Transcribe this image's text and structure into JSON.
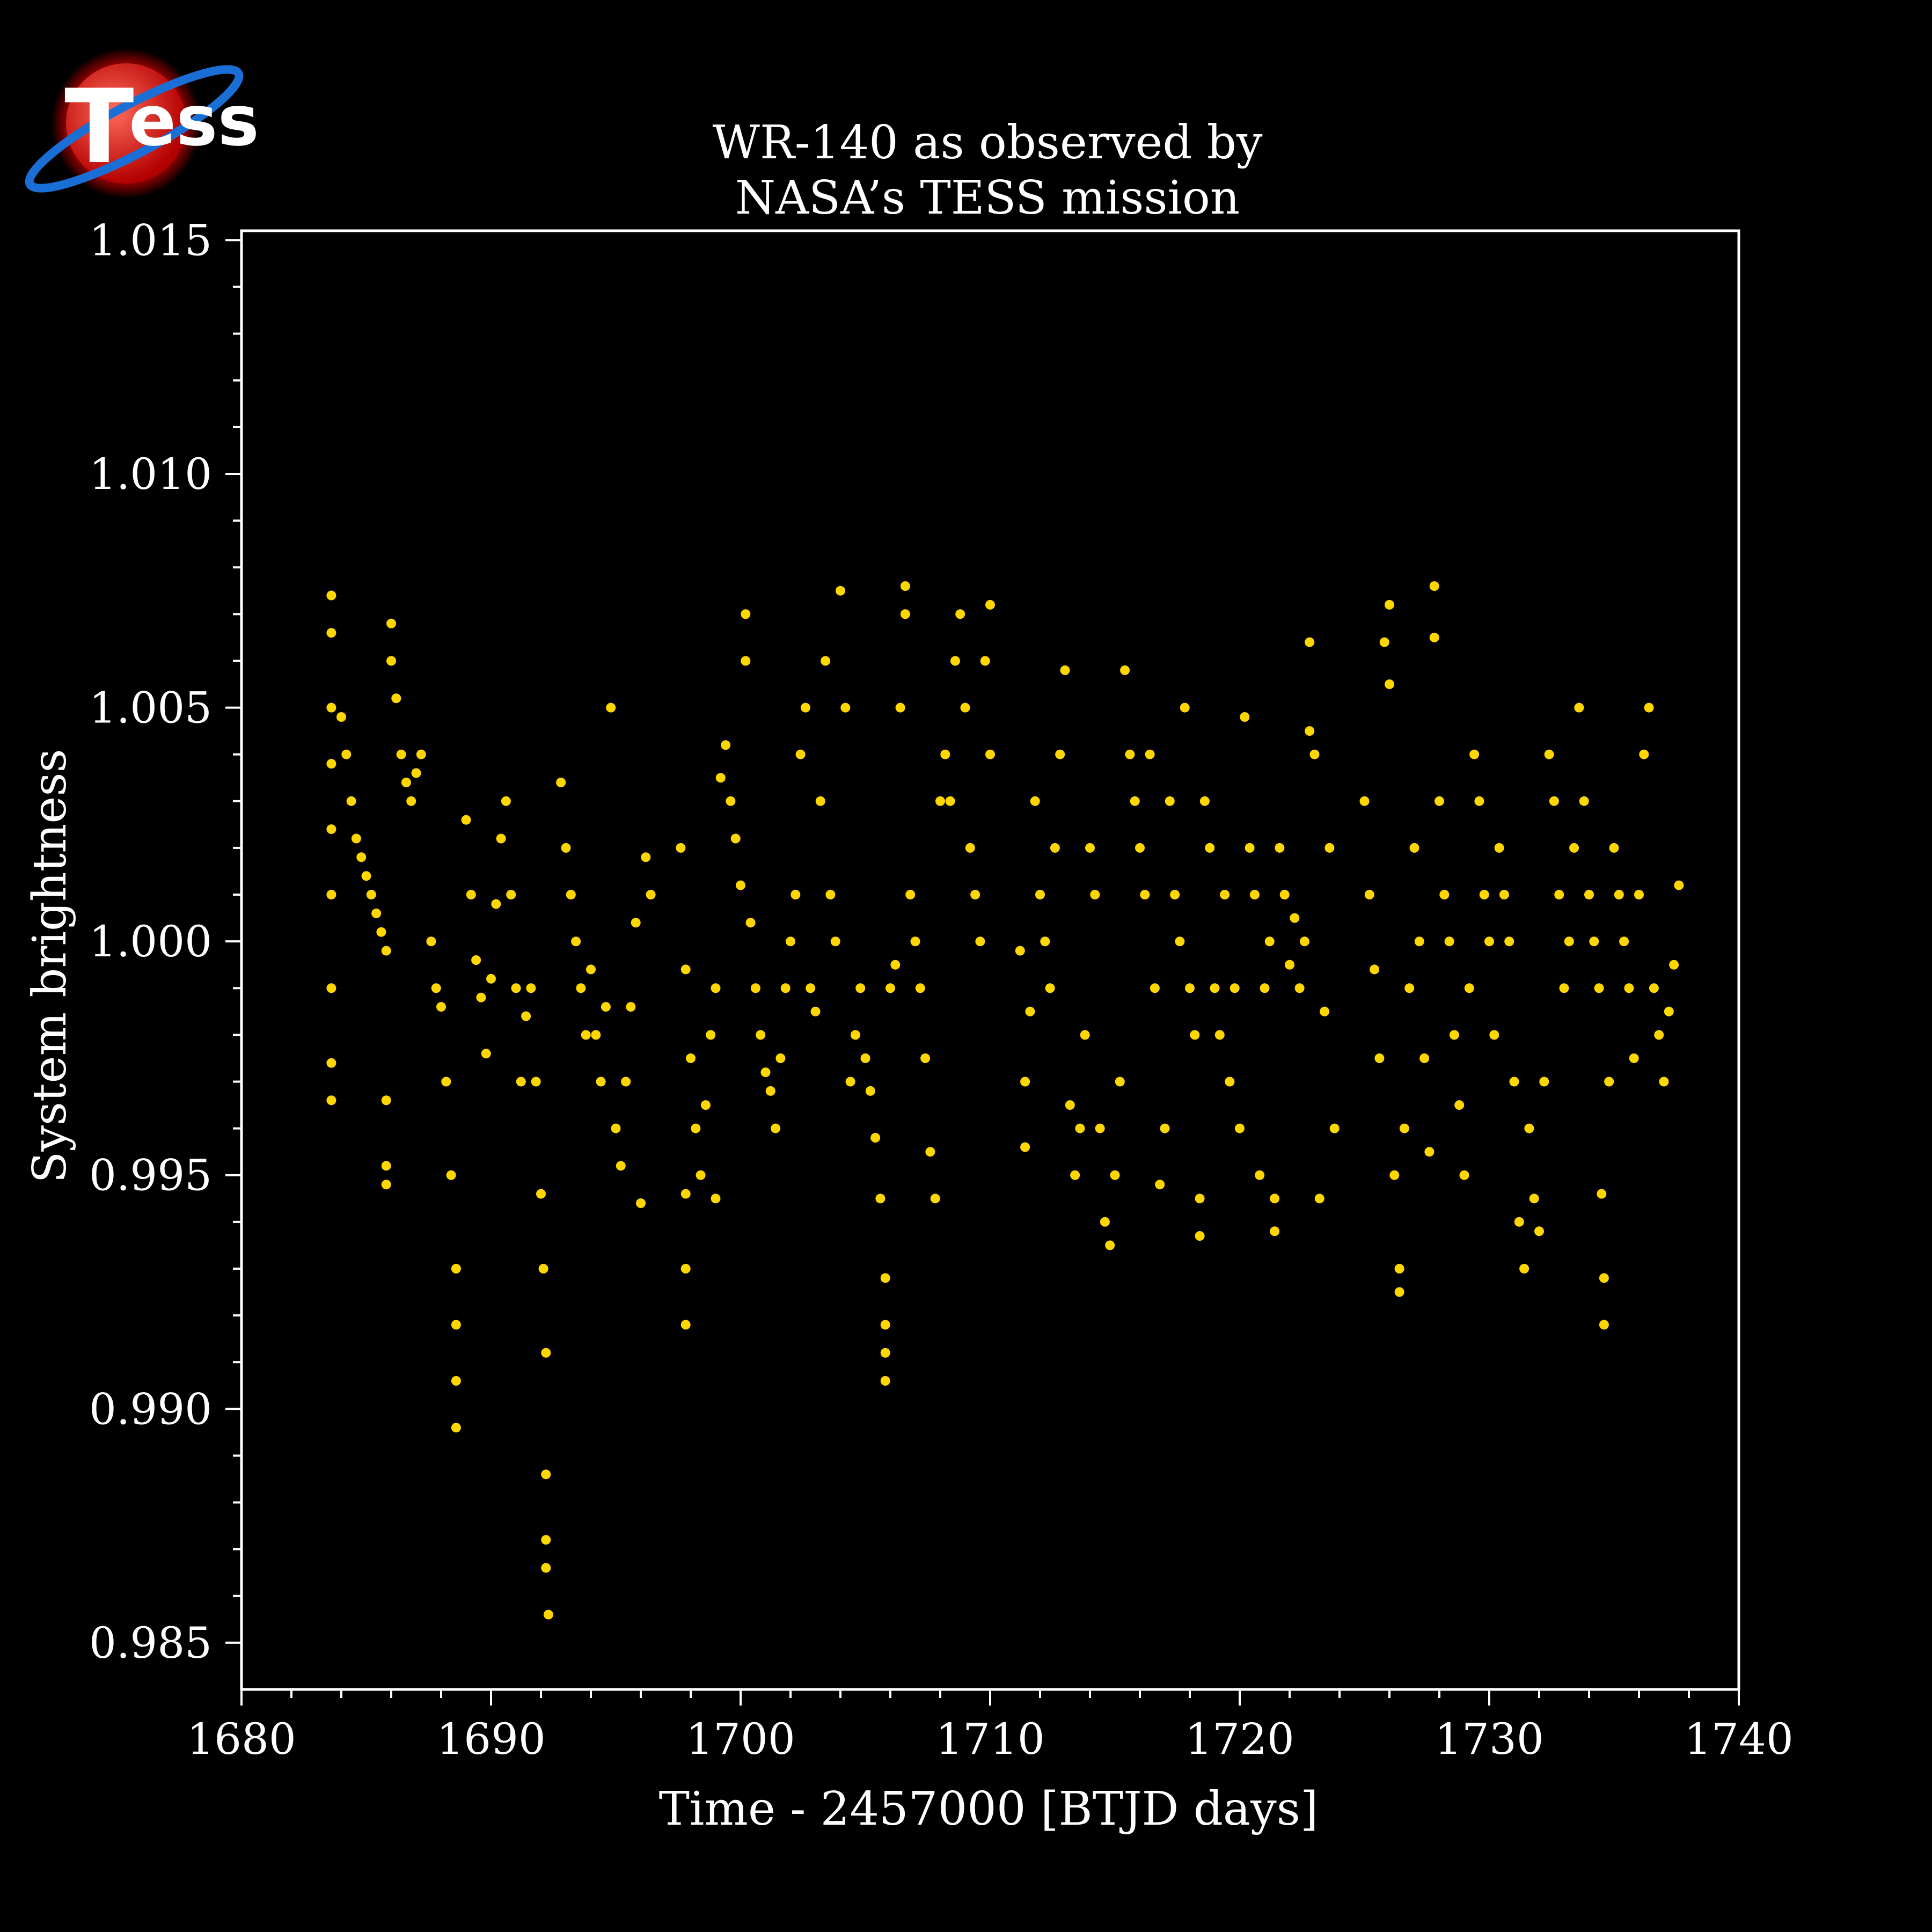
{
  "logo": {
    "text": "Tess"
  },
  "colors": {
    "background": "#000000",
    "axis": "#ffffff",
    "points": "#FFD700",
    "text": "#ffffff"
  },
  "chart_data": {
    "type": "scatter",
    "title": "WR-140 as observed by",
    "subtitle": "NASA’s TESS mission",
    "xlabel": "Time - 2457000 [BTJD days]",
    "ylabel": "System brightness",
    "xlim": [
      1680,
      1740
    ],
    "ylim": [
      0.984,
      1.0152
    ],
    "xticks": [
      1680,
      1690,
      1700,
      1710,
      1720,
      1730,
      1740
    ],
    "xtick_labels": [
      "1680",
      "1690",
      "1700",
      "1710",
      "1720",
      "1730",
      "1740"
    ],
    "yticks": [
      0.985,
      0.99,
      0.995,
      1.0,
      1.005,
      1.01,
      1.015
    ],
    "ytick_labels": [
      "0.985",
      "0.990",
      "0.995",
      "1.000",
      "1.005",
      "1.010",
      "1.015"
    ],
    "grid": false,
    "series": [
      {
        "color": "#FFD700",
        "points": [
          [
            1683.6,
            1.0074
          ],
          [
            1683.6,
            1.0066
          ],
          [
            1683.6,
            1.005
          ],
          [
            1683.6,
            1.0038
          ],
          [
            1683.6,
            1.0024
          ],
          [
            1683.6,
            1.001
          ],
          [
            1683.6,
            0.999
          ],
          [
            1683.6,
            0.9974
          ],
          [
            1683.6,
            0.9966
          ],
          [
            1684.0,
            1.0048
          ],
          [
            1684.2,
            1.004
          ],
          [
            1684.4,
            1.003
          ],
          [
            1684.6,
            1.0022
          ],
          [
            1684.8,
            1.0018
          ],
          [
            1685.0,
            1.0014
          ],
          [
            1685.2,
            1.001
          ],
          [
            1685.4,
            1.0006
          ],
          [
            1685.6,
            1.0002
          ],
          [
            1685.8,
            0.9998
          ],
          [
            1685.8,
            0.9966
          ],
          [
            1685.8,
            0.9952
          ],
          [
            1685.8,
            0.9948
          ],
          [
            1686.0,
            1.0068
          ],
          [
            1686.0,
            1.006
          ],
          [
            1686.2,
            1.0052
          ],
          [
            1686.4,
            1.004
          ],
          [
            1686.6,
            1.0034
          ],
          [
            1686.8,
            1.003
          ],
          [
            1687.0,
            1.0036
          ],
          [
            1687.2,
            1.004
          ],
          [
            1687.6,
            1.0
          ],
          [
            1687.8,
            0.999
          ],
          [
            1688.0,
            0.9986
          ],
          [
            1688.2,
            0.997
          ],
          [
            1688.4,
            0.995
          ],
          [
            1688.6,
            0.993
          ],
          [
            1688.6,
            0.9918
          ],
          [
            1688.6,
            0.9906
          ],
          [
            1688.6,
            0.9896
          ],
          [
            1689.0,
            1.0026
          ],
          [
            1689.2,
            1.001
          ],
          [
            1689.4,
            0.9996
          ],
          [
            1689.6,
            0.9988
          ],
          [
            1689.8,
            0.9976
          ],
          [
            1690.0,
            0.9992
          ],
          [
            1690.2,
            1.0008
          ],
          [
            1690.4,
            1.0022
          ],
          [
            1690.6,
            1.003
          ],
          [
            1690.8,
            1.001
          ],
          [
            1691.0,
            0.999
          ],
          [
            1691.2,
            0.997
          ],
          [
            1691.4,
            0.9984
          ],
          [
            1691.6,
            0.999
          ],
          [
            1691.8,
            0.997
          ],
          [
            1692.0,
            0.9946
          ],
          [
            1692.1,
            0.993
          ],
          [
            1692.2,
            0.9912
          ],
          [
            1692.2,
            0.9886
          ],
          [
            1692.2,
            0.9872
          ],
          [
            1692.2,
            0.9866
          ],
          [
            1692.3,
            0.9856
          ],
          [
            1692.8,
            1.0034
          ],
          [
            1693.0,
            1.002
          ],
          [
            1693.2,
            1.001
          ],
          [
            1693.4,
            1.0
          ],
          [
            1693.6,
            0.999
          ],
          [
            1693.8,
            0.998
          ],
          [
            1694.0,
            0.9994
          ],
          [
            1694.2,
            0.998
          ],
          [
            1694.4,
            0.997
          ],
          [
            1694.6,
            0.9986
          ],
          [
            1694.8,
            1.005
          ],
          [
            1695.0,
            0.996
          ],
          [
            1695.2,
            0.9952
          ],
          [
            1695.4,
            0.997
          ],
          [
            1695.6,
            0.9986
          ],
          [
            1695.8,
            1.0004
          ],
          [
            1696.0,
            0.9944
          ],
          [
            1696.2,
            1.0018
          ],
          [
            1696.4,
            1.001
          ],
          [
            1697.6,
            1.002
          ],
          [
            1697.8,
            0.9994
          ],
          [
            1697.8,
            0.9946
          ],
          [
            1697.8,
            0.993
          ],
          [
            1697.8,
            0.9918
          ],
          [
            1698.0,
            0.9975
          ],
          [
            1698.2,
            0.996
          ],
          [
            1698.4,
            0.995
          ],
          [
            1698.6,
            0.9965
          ],
          [
            1698.8,
            0.998
          ],
          [
            1699.0,
            0.999
          ],
          [
            1699.0,
            0.9945
          ],
          [
            1699.2,
            1.0035
          ],
          [
            1699.4,
            1.0042
          ],
          [
            1699.6,
            1.003
          ],
          [
            1699.8,
            1.0022
          ],
          [
            1700.0,
            1.0012
          ],
          [
            1700.2,
            1.006
          ],
          [
            1700.2,
            1.007
          ],
          [
            1700.4,
            1.0004
          ],
          [
            1700.6,
            0.999
          ],
          [
            1700.8,
            0.998
          ],
          [
            1701.0,
            0.9972
          ],
          [
            1701.2,
            0.9968
          ],
          [
            1701.4,
            0.996
          ],
          [
            1701.6,
            0.9975
          ],
          [
            1701.8,
            0.999
          ],
          [
            1702.0,
            1.0
          ],
          [
            1702.2,
            1.001
          ],
          [
            1702.4,
            1.004
          ],
          [
            1702.6,
            1.005
          ],
          [
            1702.8,
            0.999
          ],
          [
            1703.0,
            0.9985
          ],
          [
            1703.2,
            1.003
          ],
          [
            1703.4,
            1.006
          ],
          [
            1703.6,
            1.001
          ],
          [
            1703.8,
            1.0
          ],
          [
            1704.0,
            1.0075
          ],
          [
            1704.2,
            1.005
          ],
          [
            1704.4,
            0.997
          ],
          [
            1704.6,
            0.998
          ],
          [
            1704.8,
            0.999
          ],
          [
            1705.0,
            0.9975
          ],
          [
            1705.2,
            0.9968
          ],
          [
            1705.4,
            0.9958
          ],
          [
            1705.6,
            0.9945
          ],
          [
            1705.8,
            0.9928
          ],
          [
            1705.8,
            0.9918
          ],
          [
            1705.8,
            0.9912
          ],
          [
            1705.8,
            0.9906
          ],
          [
            1706.0,
            0.999
          ],
          [
            1706.2,
            0.9995
          ],
          [
            1706.4,
            1.005
          ],
          [
            1706.6,
            1.0076
          ],
          [
            1706.6,
            1.007
          ],
          [
            1706.8,
            1.001
          ],
          [
            1707.0,
            1.0
          ],
          [
            1707.2,
            0.999
          ],
          [
            1707.4,
            0.9975
          ],
          [
            1707.6,
            0.9955
          ],
          [
            1707.8,
            0.9945
          ],
          [
            1708.0,
            1.003
          ],
          [
            1708.2,
            1.004
          ],
          [
            1708.4,
            1.003
          ],
          [
            1708.6,
            1.006
          ],
          [
            1708.8,
            1.007
          ],
          [
            1709.0,
            1.005
          ],
          [
            1709.2,
            1.002
          ],
          [
            1709.4,
            1.001
          ],
          [
            1709.6,
            1.0
          ],
          [
            1709.8,
            1.006
          ],
          [
            1710.0,
            1.0072
          ],
          [
            1710.0,
            1.004
          ],
          [
            1711.2,
            0.9998
          ],
          [
            1711.4,
            0.997
          ],
          [
            1711.4,
            0.9956
          ],
          [
            1711.6,
            0.9985
          ],
          [
            1711.8,
            1.003
          ],
          [
            1712.0,
            1.001
          ],
          [
            1712.2,
            1.0
          ],
          [
            1712.4,
            0.999
          ],
          [
            1712.6,
            1.002
          ],
          [
            1712.8,
            1.004
          ],
          [
            1713.0,
            1.0058
          ],
          [
            1713.2,
            0.9965
          ],
          [
            1713.4,
            0.995
          ],
          [
            1713.6,
            0.996
          ],
          [
            1713.8,
            0.998
          ],
          [
            1714.0,
            1.002
          ],
          [
            1714.2,
            1.001
          ],
          [
            1714.4,
            0.996
          ],
          [
            1714.6,
            0.994
          ],
          [
            1714.8,
            0.9935
          ],
          [
            1715.0,
            0.995
          ],
          [
            1715.2,
            0.997
          ],
          [
            1715.4,
            1.0058
          ],
          [
            1715.6,
            1.004
          ],
          [
            1715.8,
            1.003
          ],
          [
            1716.0,
            1.002
          ],
          [
            1716.2,
            1.001
          ],
          [
            1716.4,
            1.004
          ],
          [
            1716.6,
            0.999
          ],
          [
            1716.8,
            0.9948
          ],
          [
            1717.0,
            0.996
          ],
          [
            1717.2,
            1.003
          ],
          [
            1717.4,
            1.001
          ],
          [
            1717.6,
            1.0
          ],
          [
            1717.8,
            1.005
          ],
          [
            1718.0,
            0.999
          ],
          [
            1718.2,
            0.998
          ],
          [
            1718.4,
            0.9945
          ],
          [
            1718.4,
            0.9937
          ],
          [
            1718.6,
            1.003
          ],
          [
            1718.8,
            1.002
          ],
          [
            1719.0,
            0.999
          ],
          [
            1719.2,
            0.998
          ],
          [
            1719.4,
            1.001
          ],
          [
            1719.6,
            0.997
          ],
          [
            1719.8,
            0.999
          ],
          [
            1720.0,
            0.996
          ],
          [
            1720.2,
            1.0048
          ],
          [
            1720.4,
            1.002
          ],
          [
            1720.6,
            1.001
          ],
          [
            1720.8,
            0.995
          ],
          [
            1721.0,
            0.999
          ],
          [
            1721.2,
            1.0
          ],
          [
            1721.4,
            0.9945
          ],
          [
            1721.4,
            0.9938
          ],
          [
            1721.6,
            1.002
          ],
          [
            1721.8,
            1.001
          ],
          [
            1722.0,
            0.9995
          ],
          [
            1722.2,
            1.0005
          ],
          [
            1722.4,
            0.999
          ],
          [
            1722.6,
            1.0
          ],
          [
            1722.8,
            1.0064
          ],
          [
            1722.8,
            1.0045
          ],
          [
            1723.0,
            1.004
          ],
          [
            1723.2,
            0.9945
          ],
          [
            1723.4,
            0.9985
          ],
          [
            1723.6,
            1.002
          ],
          [
            1723.8,
            0.996
          ],
          [
            1725.0,
            1.003
          ],
          [
            1725.2,
            1.001
          ],
          [
            1725.4,
            0.9994
          ],
          [
            1725.6,
            0.9975
          ],
          [
            1725.8,
            1.0064
          ],
          [
            1726.0,
            1.0072
          ],
          [
            1726.0,
            1.0055
          ],
          [
            1726.2,
            0.995
          ],
          [
            1726.4,
            0.993
          ],
          [
            1726.4,
            0.9925
          ],
          [
            1726.6,
            0.996
          ],
          [
            1726.8,
            0.999
          ],
          [
            1727.0,
            1.002
          ],
          [
            1727.2,
            1.0
          ],
          [
            1727.4,
            0.9975
          ],
          [
            1727.6,
            0.9955
          ],
          [
            1727.8,
            1.0076
          ],
          [
            1727.8,
            1.0065
          ],
          [
            1728.0,
            1.003
          ],
          [
            1728.2,
            1.001
          ],
          [
            1728.4,
            1.0
          ],
          [
            1728.6,
            0.998
          ],
          [
            1728.8,
            0.9965
          ],
          [
            1729.0,
            0.995
          ],
          [
            1729.2,
            0.999
          ],
          [
            1729.4,
            1.004
          ],
          [
            1729.6,
            1.003
          ],
          [
            1729.8,
            1.001
          ],
          [
            1730.0,
            1.0
          ],
          [
            1730.2,
            0.998
          ],
          [
            1730.4,
            1.002
          ],
          [
            1730.6,
            1.001
          ],
          [
            1730.8,
            1.0
          ],
          [
            1731.0,
            0.997
          ],
          [
            1731.2,
            0.994
          ],
          [
            1731.4,
            0.993
          ],
          [
            1731.6,
            0.996
          ],
          [
            1731.8,
            0.9945
          ],
          [
            1732.0,
            0.9938
          ],
          [
            1732.2,
            0.997
          ],
          [
            1732.4,
            1.004
          ],
          [
            1732.6,
            1.003
          ],
          [
            1732.8,
            1.001
          ],
          [
            1733.0,
            0.999
          ],
          [
            1733.2,
            1.0
          ],
          [
            1733.4,
            1.002
          ],
          [
            1733.6,
            1.005
          ],
          [
            1733.8,
            1.003
          ],
          [
            1734.0,
            1.001
          ],
          [
            1734.2,
            1.0
          ],
          [
            1734.4,
            0.999
          ],
          [
            1734.5,
            0.9946
          ],
          [
            1734.6,
            0.9928
          ],
          [
            1734.6,
            0.9918
          ],
          [
            1734.8,
            0.997
          ],
          [
            1735.0,
            1.002
          ],
          [
            1735.2,
            1.001
          ],
          [
            1735.4,
            1.0
          ],
          [
            1735.6,
            0.999
          ],
          [
            1735.8,
            0.9975
          ],
          [
            1736.0,
            1.001
          ],
          [
            1736.2,
            1.004
          ],
          [
            1736.4,
            1.005
          ],
          [
            1736.6,
            0.999
          ],
          [
            1736.8,
            0.998
          ],
          [
            1737.0,
            0.997
          ],
          [
            1737.2,
            0.9985
          ],
          [
            1737.4,
            0.9995
          ],
          [
            1737.6,
            1.0012
          ]
        ]
      }
    ]
  }
}
